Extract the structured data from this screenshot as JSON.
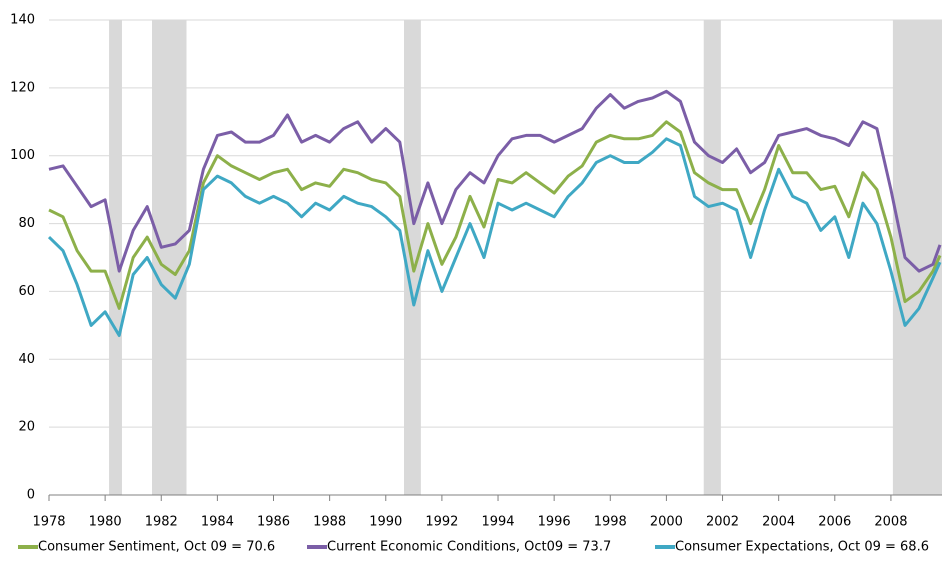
{
  "chart_data": {
    "type": "line",
    "x": [
      1978.0,
      1978.5,
      1979.0,
      1979.5,
      1980.0,
      1980.5,
      1981.0,
      1981.5,
      1982.0,
      1982.5,
      1983.0,
      1983.5,
      1984.0,
      1984.5,
      1985.0,
      1985.5,
      1986.0,
      1986.5,
      1987.0,
      1987.5,
      1988.0,
      1988.5,
      1989.0,
      1989.5,
      1990.0,
      1990.5,
      1991.0,
      1991.5,
      1992.0,
      1992.5,
      1993.0,
      1993.5,
      1994.0,
      1994.5,
      1995.0,
      1995.5,
      1996.0,
      1996.5,
      1997.0,
      1997.5,
      1998.0,
      1998.5,
      1999.0,
      1999.5,
      2000.0,
      2000.5,
      2001.0,
      2001.5,
      2002.0,
      2002.5,
      2003.0,
      2003.5,
      2004.0,
      2004.5,
      2005.0,
      2005.5,
      2006.0,
      2006.5,
      2007.0,
      2007.5,
      2008.0,
      2008.5,
      2009.0,
      2009.5,
      2009.75
    ],
    "series": [
      {
        "name": "Consumer Sentiment, Oct 09 = 70.6",
        "color": "#8db04a",
        "values": [
          84,
          82,
          72,
          66,
          66,
          55,
          70,
          76,
          68,
          65,
          72,
          92,
          100,
          97,
          95,
          93,
          95,
          96,
          90,
          92,
          91,
          96,
          95,
          93,
          92,
          88,
          66,
          80,
          68,
          76,
          88,
          79,
          93,
          92,
          95,
          92,
          89,
          94,
          97,
          104,
          106,
          105,
          105,
          106,
          110,
          107,
          95,
          92,
          90,
          90,
          80,
          90,
          103,
          95,
          95,
          90,
          91,
          82,
          95,
          90,
          76,
          57,
          60,
          66,
          70.6
        ]
      },
      {
        "name": "Current Economic Conditions, Oct09 = 73.7",
        "color": "#7b5ea7",
        "values": [
          96,
          97,
          91,
          85,
          87,
          66,
          78,
          85,
          73,
          74,
          78,
          96,
          106,
          107,
          104,
          104,
          106,
          112,
          104,
          106,
          104,
          108,
          110,
          104,
          108,
          104,
          80,
          92,
          80,
          90,
          95,
          92,
          100,
          105,
          106,
          106,
          104,
          106,
          108,
          114,
          118,
          114,
          116,
          117,
          119,
          116,
          104,
          100,
          98,
          102,
          95,
          98,
          106,
          107,
          108,
          106,
          105,
          103,
          110,
          108,
          90,
          70,
          66,
          68,
          73.7
        ]
      },
      {
        "name": "Consumer Expectations, Oct 09 = 68.6",
        "color": "#3fa8c4",
        "values": [
          76,
          72,
          62,
          50,
          54,
          47,
          65,
          70,
          62,
          58,
          68,
          90,
          94,
          92,
          88,
          86,
          88,
          86,
          82,
          86,
          84,
          88,
          86,
          85,
          82,
          78,
          56,
          72,
          60,
          70,
          80,
          70,
          86,
          84,
          86,
          84,
          82,
          88,
          92,
          98,
          100,
          98,
          98,
          101,
          105,
          103,
          88,
          85,
          86,
          84,
          70,
          84,
          96,
          88,
          86,
          78,
          82,
          70,
          86,
          80,
          66,
          50,
          55,
          64,
          68.6
        ]
      }
    ],
    "shading": [
      [
        1980.14,
        1980.6
      ],
      [
        1981.67,
        1982.9
      ],
      [
        1990.65,
        1991.25
      ],
      [
        2001.33,
        2001.94
      ],
      [
        2008.07,
        2009.82
      ]
    ],
    "shading_color": "#d9d9d9",
    "xlim": [
      1978,
      2009.82
    ],
    "xticks": [
      1978,
      1980,
      1982,
      1984,
      1986,
      1988,
      1990,
      1992,
      1994,
      1996,
      1998,
      2000,
      2002,
      2004,
      2006,
      2008
    ],
    "ylim": [
      0,
      140
    ],
    "yticks": [
      0,
      20,
      40,
      60,
      80,
      100,
      120,
      140
    ],
    "grid": true,
    "legend": "bottom"
  }
}
